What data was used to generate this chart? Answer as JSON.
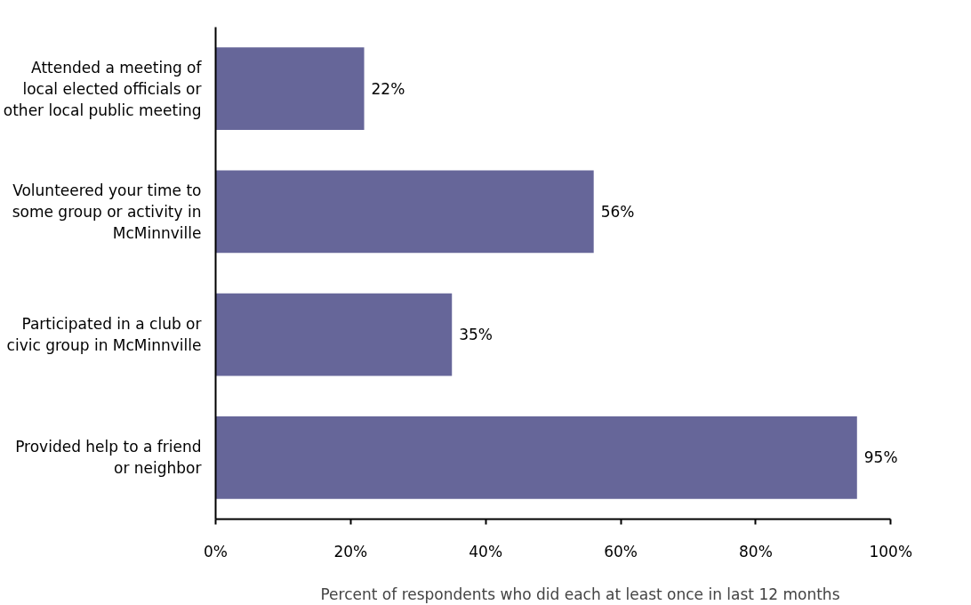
{
  "chart_data": {
    "type": "bar",
    "orientation": "horizontal",
    "categories": [
      "Attended a meeting of local elected officials or other local public meeting",
      "Volunteered your time to some group or activity in McMinnville",
      "Participated in a club or civic group in McMinnville",
      "Provided help to a friend or neighbor"
    ],
    "values": [
      22,
      56,
      35,
      95
    ],
    "color": "#666699",
    "value_labels": [
      "22%",
      "56%",
      "35%",
      "95%"
    ],
    "xlim": [
      0,
      100
    ],
    "xticks": [
      {
        "value": 0,
        "label": "0%"
      },
      {
        "value": 20,
        "label": "20%"
      },
      {
        "value": 40,
        "label": "40%"
      },
      {
        "value": 60,
        "label": "60%"
      },
      {
        "value": 80,
        "label": "80%"
      },
      {
        "value": 100,
        "label": "100%"
      }
    ],
    "xlabel": "Percent of respondents who did each at least once in last 12 months",
    "grid": false
  }
}
